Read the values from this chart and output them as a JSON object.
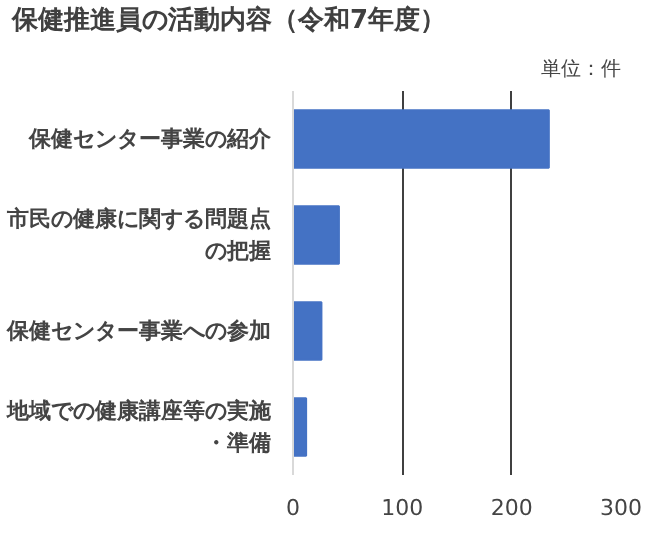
{
  "chart_data": {
    "type": "bar",
    "orientation": "horizontal",
    "title": "保健推進員の活動内容（令和7年度）",
    "annotations": [
      "単位：件"
    ],
    "categories": [
      "保健センター事業の紹介",
      "市民の健康に関する問題点の把握",
      "保健センター事業への参加",
      "地域での健康講座等の実施・準備"
    ],
    "values": [
      234,
      42,
      26,
      12
    ],
    "color": "#4472c4",
    "xlim": [
      0,
      300
    ],
    "xticks": [
      0,
      100,
      200,
      300
    ],
    "grid": "x"
  }
}
